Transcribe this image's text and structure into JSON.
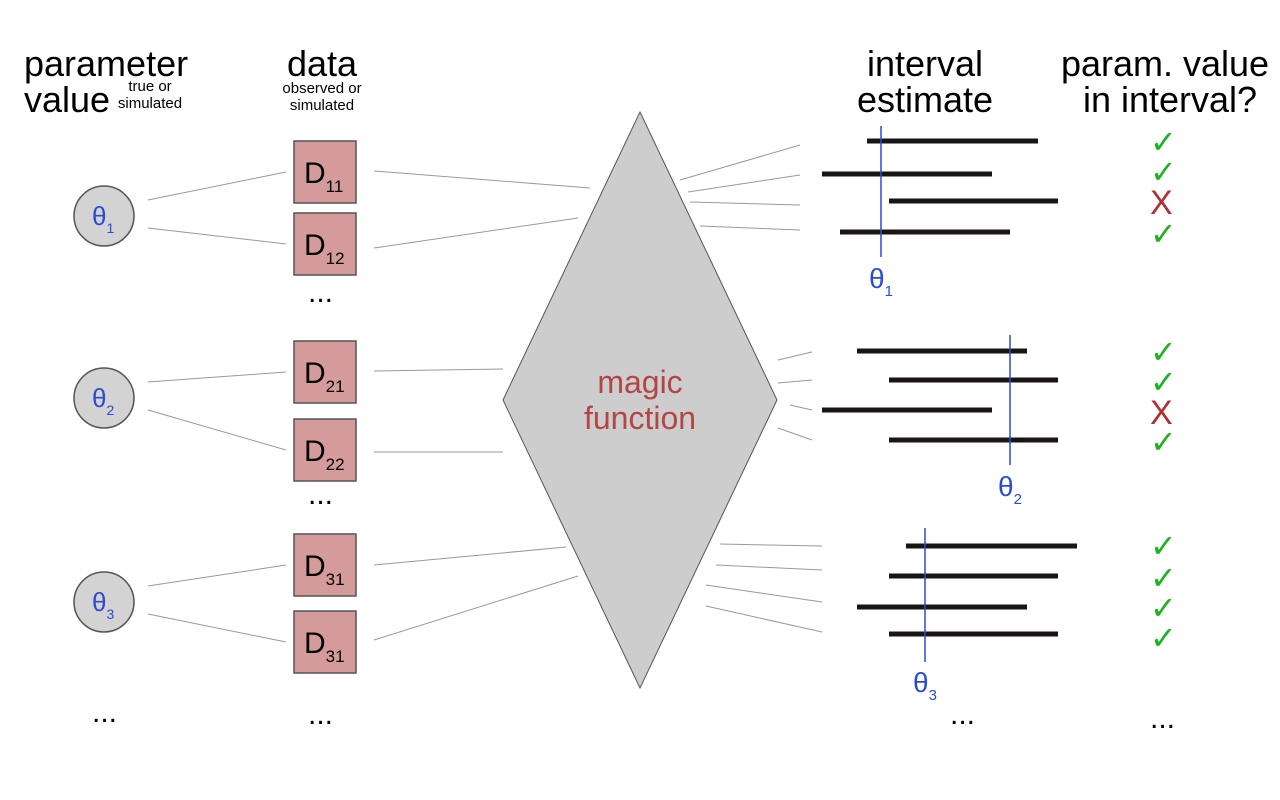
{
  "headers": {
    "param_line1": "parameter",
    "param_line2": "value",
    "param_note1": "true or",
    "param_note2": "simulated",
    "data_line1": "data",
    "data_note1": "observed or",
    "data_note2": "simulated",
    "interval_line1": "interval",
    "interval_line2": "estimate",
    "check_line1": "param. value",
    "check_line2": "in interval?"
  },
  "magic": {
    "line1": "magic",
    "line2": "function"
  },
  "ellipsis": "...",
  "colors": {
    "theta_text": "#2b4bd4",
    "circle_fill": "#d3d3d3",
    "box_fill": "#d59a9a",
    "diamond_fill": "#cdcdcd",
    "magic_text": "#b44545",
    "interval_bar": "#1a1414",
    "check": "#1fb31f",
    "cross": "#b03030"
  },
  "groups": [
    {
      "theta": {
        "symbol": "θ",
        "sub": "1"
      },
      "data_boxes": [
        {
          "letter": "D",
          "sub": "11"
        },
        {
          "letter": "D",
          "sub": "12"
        }
      ],
      "intervals": [
        {
          "lower": 867,
          "upper": 1038,
          "contains": true,
          "mark": "✓"
        },
        {
          "lower": 822,
          "upper": 992,
          "contains": true,
          "mark": "✓"
        },
        {
          "lower": 889,
          "upper": 1058,
          "contains": false,
          "mark": "X"
        },
        {
          "lower": 840,
          "upper": 1010,
          "contains": true,
          "mark": "✓"
        }
      ],
      "theta_value": 881
    },
    {
      "theta": {
        "symbol": "θ",
        "sub": "2"
      },
      "data_boxes": [
        {
          "letter": "D",
          "sub": "21"
        },
        {
          "letter": "D",
          "sub": "22"
        }
      ],
      "intervals": [
        {
          "lower": 857,
          "upper": 1027,
          "contains": true,
          "mark": "✓"
        },
        {
          "lower": 889,
          "upper": 1058,
          "contains": true,
          "mark": "✓"
        },
        {
          "lower": 822,
          "upper": 992,
          "contains": false,
          "mark": "X"
        },
        {
          "lower": 889,
          "upper": 1058,
          "contains": true,
          "mark": "✓"
        }
      ],
      "theta_value": 1010
    },
    {
      "theta": {
        "symbol": "θ",
        "sub": "3"
      },
      "data_boxes": [
        {
          "letter": "D",
          "sub": "31"
        },
        {
          "letter": "D",
          "sub": "31"
        }
      ],
      "intervals": [
        {
          "lower": 906,
          "upper": 1077,
          "contains": true,
          "mark": "✓"
        },
        {
          "lower": 889,
          "upper": 1058,
          "contains": true,
          "mark": "✓"
        },
        {
          "lower": 857,
          "upper": 1027,
          "contains": true,
          "mark": "✓"
        },
        {
          "lower": 889,
          "upper": 1058,
          "contains": true,
          "mark": "✓"
        }
      ],
      "theta_value": 925
    }
  ]
}
